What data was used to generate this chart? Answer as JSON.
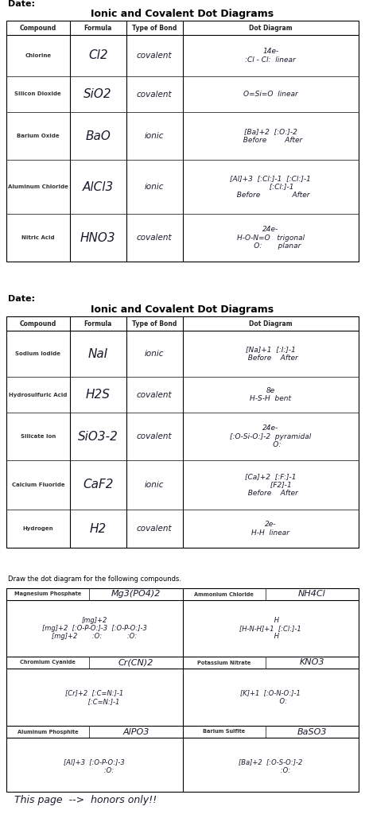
{
  "bg_color": "#ffffff",
  "title1": "Ionic and Covalent Dot Diagrams",
  "title2": "Ionic and Covalent Dot Diagrams",
  "date_label": "Date:",
  "table1_headers": [
    "Compound",
    "Formula",
    "Type of Bond",
    "Dot Diagram"
  ],
  "table1_rows": [
    [
      "Chlorine",
      "Cl2",
      "covalent",
      "14e-\n:Cl - Cl:  linear"
    ],
    [
      "Silicon Dioxide",
      "SiO2",
      "covalent",
      "O=Si=O  linear"
    ],
    [
      "Barium Oxide",
      "BaO",
      "ionic",
      "[Ba]+2  [:O:]-2\n  Before        After"
    ],
    [
      "Aluminum Chloride",
      "AlCl3",
      "ionic",
      "[Al]+3  [:Cl:]-1  [:Cl:]-1\n          [:Cl:]-1\n  Before              After"
    ],
    [
      "Nitric Acid",
      "HNO3",
      "covalent",
      "24e-\nH-O-N=O   trigonal\n      O:       planar"
    ]
  ],
  "table2_headers": [
    "Compound",
    "Formula",
    "Type of Bond",
    "Dot Diagram"
  ],
  "table2_rows": [
    [
      "Sodium Iodide",
      "NaI",
      "ionic",
      "[Na]+1  [:I:]-1\n  Before    After"
    ],
    [
      "Hydrosulfuric Acid",
      "H2S",
      "covalent",
      "8e\nH-S-H  bent"
    ],
    [
      "Silicate Ion",
      "SiO3-2",
      "covalent",
      "24e-\n[:O-Si-O:]-2  pyramidal\n      O:"
    ],
    [
      "Calcium Fluoride",
      "CaF2",
      "ionic",
      "[Ca]+2  [:F:]-1\n         [F2]-1\n  Before    After"
    ],
    [
      "Hydrogen",
      "H2",
      "covalent",
      "2e-\nH-H  linear"
    ]
  ],
  "section3_title": "Draw the dot diagram for the following compounds.",
  "section3_cols": [
    {
      "name": "Magnesium Phosphate",
      "formula": "Mg3(PO4)2",
      "content": "[mg]+2\n[mg]+2  [:O-P-O:]-3  [:O-P-O:]-3\n[mg]+2       :O:            :O:"
    },
    {
      "name": "Ammonium Chloride",
      "formula": "NH4Cl",
      "content": "      H\n[H-N-H]+1  [:Cl:]-1\n      H"
    },
    {
      "name": "Chromium Cyanide",
      "formula": "Cr(CN)2",
      "content": "[Cr]+2  [:C=N:]-1\n         [:C=N:]-1"
    },
    {
      "name": "Potassium Nitrate",
      "formula": "KNO3",
      "content": "[K]+1  [:O-N-O:]-1\n            O:"
    },
    {
      "name": "Aluminum Phosphite",
      "formula": "AlPO3",
      "content": "[Al]+3  [:O-P-O:]-3\n              :O:"
    },
    {
      "name": "Barium Sulfite",
      "formula": "BaSO3",
      "content": "[Ba]+2  [:O-S-O:]-2\n              :O:"
    }
  ],
  "footer": "This page  -->  honors only!!"
}
